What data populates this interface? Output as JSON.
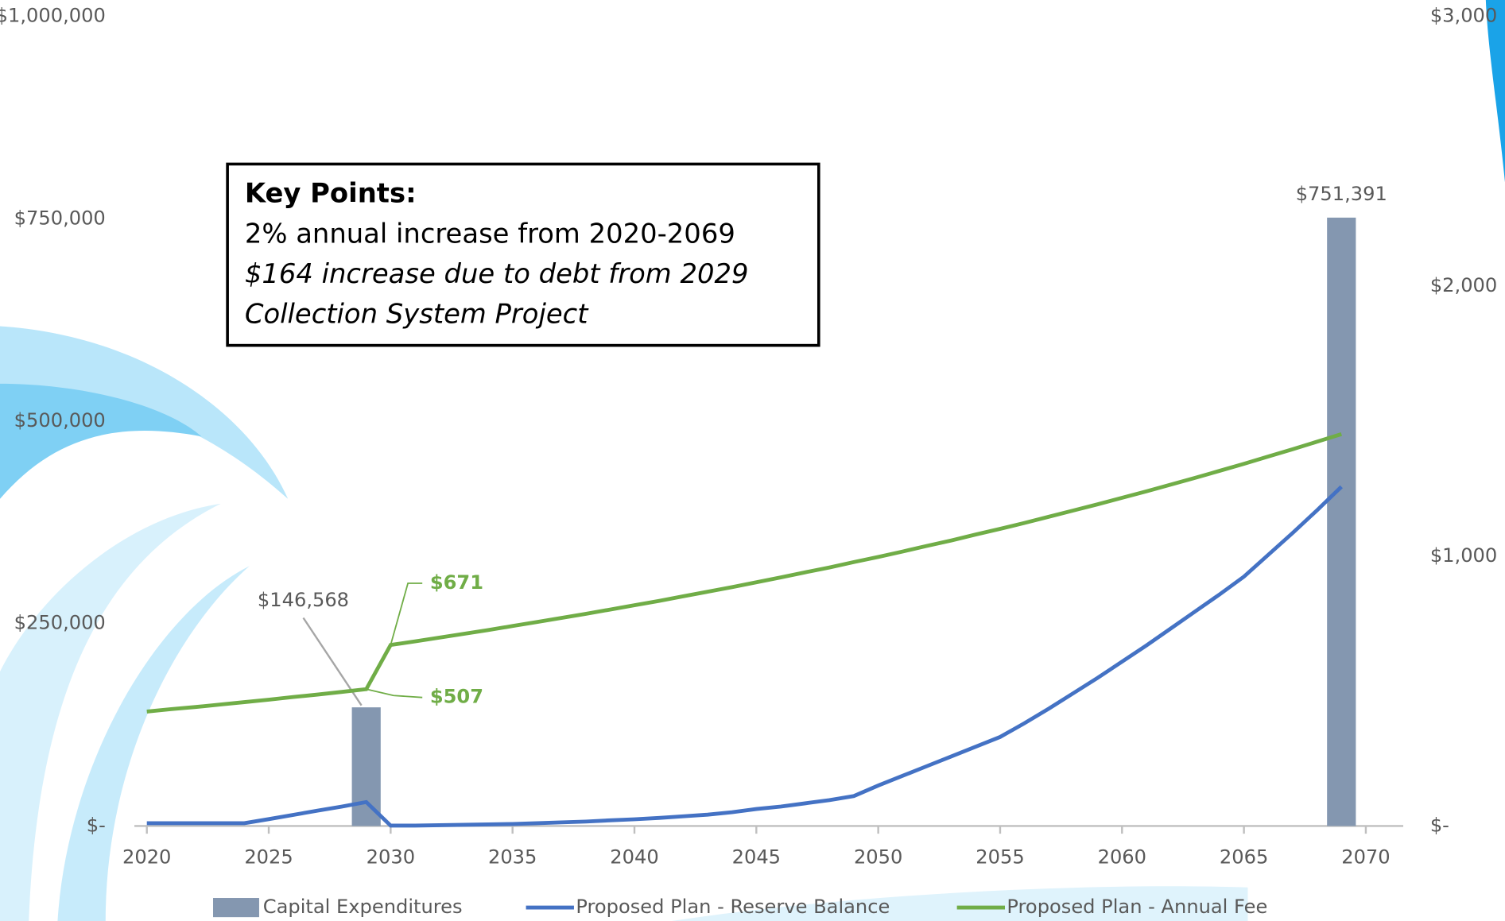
{
  "chart_data": {
    "type": "combo",
    "x": [
      2020,
      2021,
      2022,
      2023,
      2024,
      2025,
      2026,
      2027,
      2028,
      2029,
      2030,
      2031,
      2032,
      2033,
      2034,
      2035,
      2036,
      2037,
      2038,
      2039,
      2040,
      2041,
      2042,
      2043,
      2044,
      2045,
      2046,
      2047,
      2048,
      2049,
      2050,
      2051,
      2052,
      2053,
      2054,
      2055,
      2056,
      2057,
      2058,
      2059,
      2060,
      2061,
      2062,
      2063,
      2064,
      2065,
      2066,
      2067,
      2068,
      2069
    ],
    "xlim": [
      2020,
      2070
    ],
    "xticks": [
      2020,
      2025,
      2030,
      2035,
      2040,
      2045,
      2050,
      2055,
      2060,
      2065,
      2070
    ],
    "ylim": [
      0,
      1000000
    ],
    "yticks": [
      {
        "value": 0,
        "label": "$-"
      },
      {
        "value": 250000,
        "label": "$250,000"
      },
      {
        "value": 500000,
        "label": "$500,000"
      },
      {
        "value": 750000,
        "label": "$750,000"
      },
      {
        "value": 1000000,
        "label": "$1,000,000"
      }
    ],
    "y2lim": [
      0,
      3000
    ],
    "y2ticks": [
      {
        "value": 0,
        "label": "$-"
      },
      {
        "value": 1000,
        "label": "$1,000"
      },
      {
        "value": 2000,
        "label": "$2,000"
      },
      {
        "value": 3000,
        "label": "$3,000"
      }
    ],
    "legend": "bottom",
    "series": [
      {
        "name": "Capital Expenditures",
        "type": "bar",
        "color": "#8497b0",
        "x": [
          2029,
          2069
        ],
        "values": [
          146568,
          751391
        ],
        "value_labels": [
          "$146,568",
          "$751,391"
        ]
      },
      {
        "name": "Proposed Plan - Reserve Balance",
        "type": "line",
        "color": "#4472c4",
        "values": [
          3500,
          3500,
          3500,
          3500,
          3500,
          8500,
          13700,
          19000,
          24000,
          29600,
          500,
          500,
          1000,
          1500,
          2000,
          2500,
          3500,
          4500,
          5500,
          7000,
          8300,
          10000,
          12000,
          14000,
          17000,
          21000,
          24000,
          28000,
          32000,
          37000,
          50000,
          62000,
          74000,
          86000,
          98000,
          110000,
          127000,
          145000,
          164000,
          183000,
          203000,
          223000,
          244000,
          265000,
          286000,
          308000,
          335000,
          362000,
          390000,
          419000
        ]
      },
      {
        "name": "Proposed Plan - Annual Fee",
        "type": "line",
        "axis": "y2",
        "color": "#70ad47",
        "values": [
          424,
          433,
          441,
          450,
          459,
          468,
          478,
          487,
          497,
          507,
          671,
          684,
          698,
          712,
          726,
          741,
          756,
          771,
          786,
          802,
          818,
          834,
          851,
          868,
          885,
          903,
          921,
          940,
          958,
          978,
          997,
          1017,
          1038,
          1058,
          1080,
          1101,
          1123,
          1146,
          1169,
          1192,
          1216,
          1240,
          1265,
          1290,
          1316,
          1342,
          1369,
          1396,
          1424,
          1452
        ],
        "value_labels": [
          null,
          null,
          null,
          null,
          null,
          null,
          null,
          null,
          null,
          "$507",
          "$671",
          null,
          null,
          null,
          null,
          null,
          null,
          null,
          null,
          null,
          null,
          null,
          null,
          null,
          null,
          null,
          null,
          null,
          null,
          null,
          null,
          null,
          null,
          null,
          null,
          null,
          null,
          null,
          null,
          null,
          null,
          null,
          null,
          null,
          null,
          null,
          null,
          null,
          null,
          null
        ]
      }
    ],
    "annotation_box": {
      "title": "Key Points:",
      "lines": [
        "2% annual increase from 2020-2069",
        "$164 increase due to debt from 2029",
        "Collection System Project"
      ]
    }
  }
}
